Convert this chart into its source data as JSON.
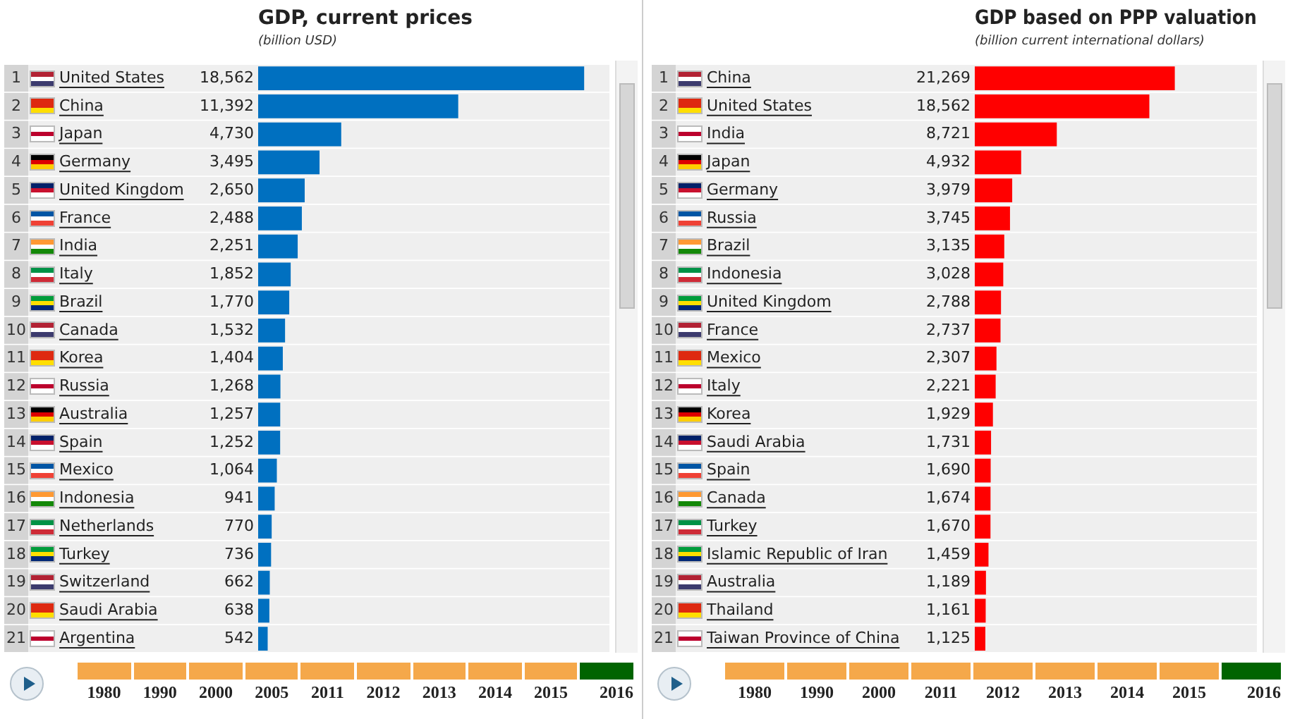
{
  "chart_data": [
    {
      "type": "bar",
      "orientation": "horizontal",
      "title": "GDP, current prices",
      "subtitle": "(billion USD)",
      "color": "#0070c0",
      "categories": [
        "1 United States",
        "2 China",
        "3 Japan",
        "4 Germany",
        "5 United Kingdom",
        "6 France",
        "7 India",
        "8 Italy",
        "9 Brazil",
        "10 Canada",
        "11 Korea",
        "12 Russia",
        "13 Australia",
        "14 Spain",
        "15 Mexico",
        "16 Indonesia",
        "17 Netherlands",
        "18 Turkey",
        "19 Switzerland",
        "20 Saudi Arabia",
        "21 Argentina"
      ],
      "values": [
        18562,
        11392,
        4730,
        3495,
        2650,
        2488,
        2251,
        1852,
        1770,
        1532,
        1404,
        1268,
        1257,
        1252,
        1064,
        941,
        770,
        736,
        662,
        638,
        542
      ],
      "value_labels": [
        "18,562",
        "11,392",
        "4,730",
        "3,495",
        "2,650",
        "2,488",
        "2,251",
        "1,852",
        "1,770",
        "1,532",
        "1,404",
        "1,268",
        "1,257",
        "1,252",
        "1,064",
        "941",
        "770",
        "736",
        "662",
        "638",
        "542"
      ],
      "annotations": [
        "1980",
        "1990",
        "2000",
        "2005",
        "2011",
        "2012",
        "2013",
        "2014",
        "2015",
        "2016"
      ]
    },
    {
      "type": "bar",
      "orientation": "horizontal",
      "title": "GDP based on PPP valuation",
      "subtitle": "(billion current international dollars)",
      "color": "#ff0000",
      "categories": [
        "1 China",
        "2 United States",
        "3 India",
        "4 Japan",
        "5 Germany",
        "6 Russia",
        "7 Brazil",
        "8 Indonesia",
        "9 United Kingdom",
        "10 France",
        "11 Mexico",
        "12 Italy",
        "13 Korea",
        "14 Saudi Arabia",
        "15 Spain",
        "16 Canada",
        "17 Turkey",
        "18 Islamic Republic of Iran",
        "19 Australia",
        "20 Thailand",
        "21 Taiwan Province of China"
      ],
      "values": [
        21269,
        18562,
        8721,
        4932,
        3979,
        3745,
        3135,
        3028,
        2788,
        2737,
        2307,
        2221,
        1929,
        1731,
        1690,
        1674,
        1670,
        1459,
        1189,
        1161,
        1125
      ],
      "value_labels": [
        "21,269",
        "18,562",
        "8,721",
        "4,932",
        "3,979",
        "3,745",
        "3,135",
        "3,028",
        "2,788",
        "2,737",
        "2,307",
        "2,221",
        "1,929",
        "1,731",
        "1,690",
        "1,674",
        "1,670",
        "1,459",
        "1,189",
        "1,161",
        "1,125"
      ],
      "annotations": [
        "1980",
        "1990",
        "2000",
        "2011",
        "2012",
        "2013",
        "2014",
        "2015",
        "2016"
      ]
    }
  ]
}
